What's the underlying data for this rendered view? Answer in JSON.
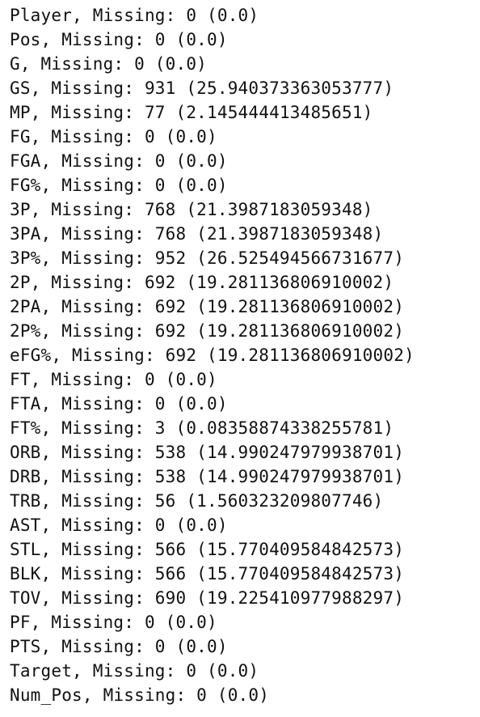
{
  "output": {
    "lines": [
      "Player, Missing: 0 (0.0)",
      "Pos, Missing: 0 (0.0)",
      "G, Missing: 0 (0.0)",
      "GS, Missing: 931 (25.940373363053777)",
      "MP, Missing: 77 (2.145444413485651)",
      "FG, Missing: 0 (0.0)",
      "FGA, Missing: 0 (0.0)",
      "FG%, Missing: 0 (0.0)",
      "3P, Missing: 768 (21.3987183059348)",
      "3PA, Missing: 768 (21.3987183059348)",
      "3P%, Missing: 952 (26.525494566731677)",
      "2P, Missing: 692 (19.281136806910002)",
      "2PA, Missing: 692 (19.281136806910002)",
      "2P%, Missing: 692 (19.281136806910002)",
      "eFG%, Missing: 692 (19.281136806910002)",
      "FT, Missing: 0 (0.0)",
      "FTA, Missing: 0 (0.0)",
      "FT%, Missing: 3 (0.08358874338255781)",
      "ORB, Missing: 538 (14.990247979938701)",
      "DRB, Missing: 538 (14.990247979938701)",
      "TRB, Missing: 56 (1.560323209807746)",
      "AST, Missing: 0 (0.0)",
      "STL, Missing: 566 (15.770409584842573)",
      "BLK, Missing: 566 (15.770409584842573)",
      "TOV, Missing: 690 (19.225410977988297)",
      "PF, Missing: 0 (0.0)",
      "PTS, Missing: 0 (0.0)",
      "Target, Missing: 0 (0.0)",
      "Num_Pos, Missing: 0 (0.0)"
    ]
  }
}
